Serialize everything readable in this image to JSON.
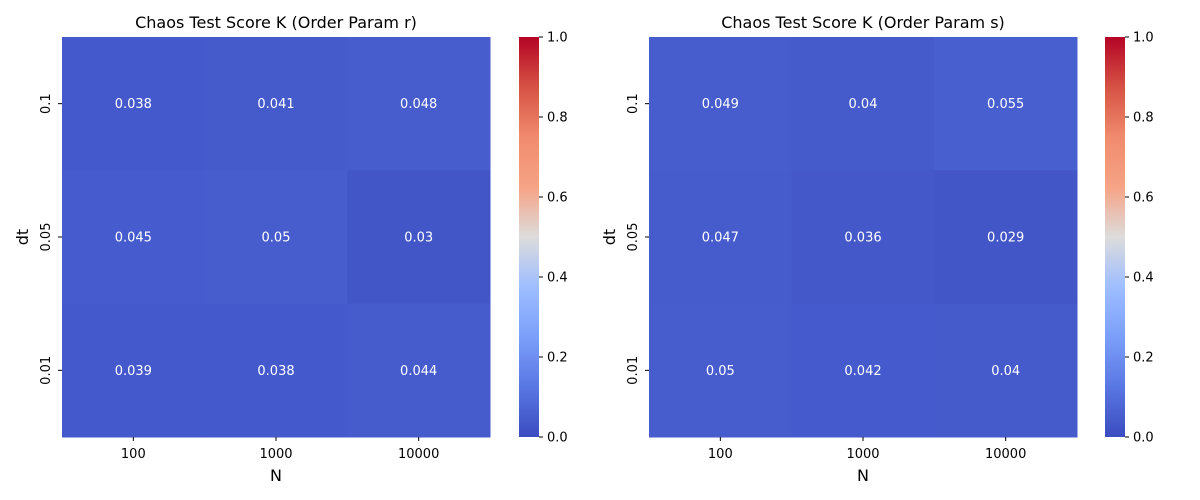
{
  "chart_data": [
    {
      "type": "heatmap",
      "title": "Chaos Test Score K (Order Param r)",
      "xlabel": "N",
      "ylabel": "dt",
      "x_categories": [
        "100",
        "1000",
        "10000"
      ],
      "y_categories": [
        "0.1",
        "0.05",
        "0.01"
      ],
      "values": [
        [
          0.038,
          0.041,
          0.048
        ],
        [
          0.045,
          0.05,
          0.03
        ],
        [
          0.039,
          0.038,
          0.044
        ]
      ],
      "value_labels": [
        [
          "0.038",
          "0.041",
          "0.048"
        ],
        [
          "0.045",
          "0.05",
          "0.03"
        ],
        [
          "0.039",
          "0.038",
          "0.044"
        ]
      ],
      "colormap": "coolwarm",
      "vmin": 0.0,
      "vmax": 1.0,
      "colorbar_ticks": [
        "0.0",
        "0.2",
        "0.4",
        "0.6",
        "0.8",
        "1.0"
      ]
    },
    {
      "type": "heatmap",
      "title": "Chaos Test Score K (Order Param s)",
      "xlabel": "N",
      "ylabel": "dt",
      "x_categories": [
        "100",
        "1000",
        "10000"
      ],
      "y_categories": [
        "0.1",
        "0.05",
        "0.01"
      ],
      "values": [
        [
          0.049,
          0.04,
          0.055
        ],
        [
          0.047,
          0.036,
          0.029
        ],
        [
          0.05,
          0.042,
          0.04
        ]
      ],
      "value_labels": [
        [
          "0.049",
          "0.04",
          "0.055"
        ],
        [
          "0.047",
          "0.036",
          "0.029"
        ],
        [
          "0.05",
          "0.042",
          "0.04"
        ]
      ],
      "colormap": "coolwarm",
      "vmin": 0.0,
      "vmax": 1.0,
      "colorbar_ticks": [
        "0.0",
        "0.2",
        "0.4",
        "0.6",
        "0.8",
        "1.0"
      ]
    }
  ]
}
